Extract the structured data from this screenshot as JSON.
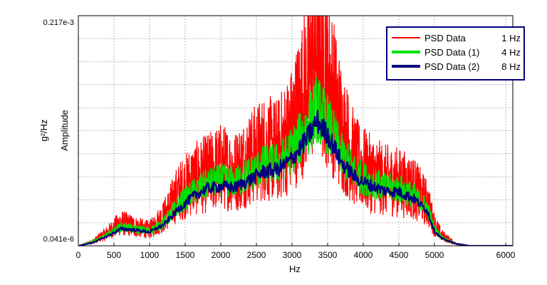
{
  "chart_data": {
    "type": "line",
    "title": "",
    "xlabel": "Hz",
    "ylabel_top": "g²/Hz",
    "ylabel_bottom": "Amplitude",
    "xlim": [
      0,
      6100
    ],
    "ylim": [
      4.1e-08,
      0.000217
    ],
    "ylim_labels": [
      "0.217e-3",
      "0.041e-6"
    ],
    "xticks": [
      0,
      500,
      1000,
      1500,
      2000,
      2500,
      3000,
      3500,
      4000,
      4500,
      5000,
      6000
    ],
    "xtick_labels": [
      "0",
      "500",
      "1000",
      "1500",
      "2000",
      "2500",
      "3000",
      "3500",
      "4000",
      "4500",
      "5000",
      "6000"
    ],
    "grid": true,
    "legend_position": "top-right",
    "series": [
      {
        "name": "PSD Data",
        "resolution": "1 Hz",
        "color": "#ff0000",
        "x": [
          0,
          200,
          400,
          600,
          800,
          1000,
          1200,
          1400,
          1600,
          1800,
          2000,
          2200,
          2400,
          2600,
          2800,
          3000,
          3200,
          3350,
          3500,
          3700,
          3900,
          4100,
          4300,
          4500,
          4700,
          4900,
          5000,
          5100,
          5300,
          5500,
          6000,
          6100
        ],
        "values": [
          0.0,
          4e-06,
          1.2e-05,
          2.2e-05,
          1.8e-05,
          1.5e-05,
          2.8e-05,
          5e-05,
          6.2e-05,
          6.8e-05,
          7.5e-05,
          7e-05,
          8.2e-05,
          9.2e-05,
          9e-05,
          0.00011,
          0.00015,
          0.00019,
          0.00016,
          0.00011,
          7.8e-05,
          6.8e-05,
          6.2e-05,
          6e-05,
          5.5e-05,
          4e-05,
          2e-05,
          1e-05,
          2e-06,
          0.0,
          0.0,
          0.0
        ]
      },
      {
        "name": "PSD Data (1)",
        "resolution": "4 Hz",
        "color": "#00e000",
        "x": [
          0,
          200,
          400,
          600,
          800,
          1000,
          1200,
          1400,
          1600,
          1800,
          2000,
          2200,
          2400,
          2600,
          2800,
          3000,
          3200,
          3350,
          3500,
          3700,
          3900,
          4100,
          4300,
          4500,
          4700,
          4900,
          5000,
          5100,
          5300,
          5500,
          6000,
          6100
        ],
        "values": [
          0.0,
          4e-06,
          1e-05,
          1.8e-05,
          1.6e-05,
          1.4e-05,
          2.2e-05,
          3.8e-05,
          5e-05,
          5.8e-05,
          6.2e-05,
          6e-05,
          6.8e-05,
          7.6e-05,
          7.8e-05,
          9e-05,
          0.00011,
          0.00013,
          0.000115,
          8.5e-05,
          6.8e-05,
          6e-05,
          5.5e-05,
          5.4e-05,
          4.8e-05,
          3.6e-05,
          1.6e-05,
          8e-06,
          2e-06,
          0.0,
          0.0,
          0.0
        ]
      },
      {
        "name": "PSD Data (2)",
        "resolution": "8 Hz",
        "color": "#000080",
        "x": [
          0,
          200,
          400,
          600,
          800,
          1000,
          1200,
          1400,
          1600,
          1800,
          2000,
          2200,
          2400,
          2600,
          2800,
          3000,
          3200,
          3350,
          3500,
          3700,
          3900,
          4100,
          4300,
          4500,
          4700,
          4900,
          5000,
          5100,
          5300,
          5500,
          6000,
          6100
        ],
        "values": [
          0.0,
          3e-06,
          9e-06,
          1.6e-05,
          1.5e-05,
          1.3e-05,
          2e-05,
          3.4e-05,
          4.6e-05,
          5.4e-05,
          5.6e-05,
          5.5e-05,
          6.2e-05,
          7e-05,
          7.2e-05,
          8.2e-05,
          0.0001,
          0.000118,
          0.000105,
          7.8e-05,
          6.4e-05,
          5.7e-05,
          5.2e-05,
          5.1e-05,
          4.5e-05,
          3.3e-05,
          1.4e-05,
          7e-06,
          2e-06,
          0.0,
          0.0,
          0.0
        ]
      }
    ]
  }
}
